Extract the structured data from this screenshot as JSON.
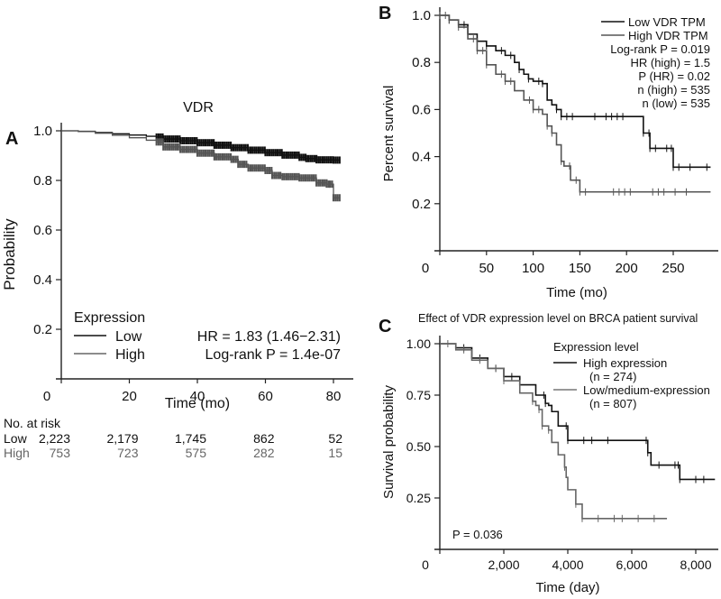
{
  "figure": {
    "panels": [
      "A",
      "B",
      "C"
    ]
  },
  "chart_data": [
    {
      "panel": "A",
      "type": "line",
      "title": "VDR",
      "xlabel": "Time (mo)",
      "ylabel": "Probability",
      "xlim": [
        0,
        82
      ],
      "ylim": [
        0,
        1.0
      ],
      "xticks": [
        0,
        20,
        40,
        60,
        80
      ],
      "yticks": [
        0.2,
        0.4,
        0.6,
        0.8,
        1.0
      ],
      "ytick_labels": [
        "0.2",
        "0.4",
        "0.6",
        "0.8",
        "1.0"
      ],
      "legend_title": "Expression",
      "legend_position": "bottom-left",
      "series": [
        {
          "name": "Low",
          "color": "#111111",
          "x": [
            0,
            5,
            10,
            15,
            20,
            25,
            28,
            30,
            35,
            40,
            45,
            50,
            55,
            60,
            65,
            70,
            72,
            75,
            80,
            82
          ],
          "y": [
            1.0,
            0.998,
            0.993,
            0.988,
            0.983,
            0.978,
            0.975,
            0.967,
            0.96,
            0.952,
            0.942,
            0.932,
            0.922,
            0.912,
            0.902,
            0.893,
            0.888,
            0.883,
            0.882,
            0.882
          ]
        },
        {
          "name": "High",
          "color": "#555555",
          "x": [
            0,
            5,
            10,
            15,
            20,
            25,
            28,
            30,
            35,
            40,
            45,
            50,
            52,
            55,
            60,
            62,
            65,
            70,
            75,
            78,
            79,
            80,
            82
          ],
          "y": [
            1.0,
            0.997,
            0.99,
            0.982,
            0.972,
            0.962,
            0.955,
            0.935,
            0.925,
            0.91,
            0.895,
            0.885,
            0.865,
            0.85,
            0.84,
            0.82,
            0.815,
            0.81,
            0.79,
            0.785,
            0.785,
            0.73,
            0.73
          ]
        }
      ],
      "annotations": [
        "HR = 1.83 (1.46−2.31)",
        "Log-rank P = 1.4e-07"
      ],
      "risk_table": {
        "title": "No. at risk",
        "rows": [
          {
            "label": "Low",
            "values": [
              "2,223",
              "2,179",
              "1,745",
              "862",
              "52"
            ]
          },
          {
            "label": "High",
            "values": [
              "753",
              "723",
              "575",
              "282",
              "15"
            ]
          }
        ]
      }
    },
    {
      "panel": "B",
      "type": "line",
      "title": "",
      "xlabel": "Time (mo)",
      "ylabel": "Percent survival",
      "xlim": [
        0,
        290
      ],
      "ylim": [
        0,
        1.0
      ],
      "xticks": [
        0,
        50,
        100,
        150,
        200,
        250
      ],
      "yticks": [
        0.2,
        0.4,
        0.6,
        0.8,
        1.0
      ],
      "ytick_labels": [
        "0.2",
        "0.4",
        "0.6",
        "0.8",
        "1.0"
      ],
      "legend_position": "top-right",
      "series": [
        {
          "name": "Low VDR TPM",
          "color": "#111111",
          "x": [
            0,
            10,
            20,
            30,
            40,
            50,
            60,
            70,
            80,
            85,
            90,
            95,
            100,
            110,
            115,
            120,
            125,
            130,
            200,
            215,
            218,
            225,
            248,
            250,
            290
          ],
          "y": [
            1.0,
            0.98,
            0.96,
            0.92,
            0.89,
            0.87,
            0.85,
            0.83,
            0.8,
            0.77,
            0.75,
            0.73,
            0.72,
            0.71,
            0.64,
            0.62,
            0.6,
            0.57,
            0.57,
            0.57,
            0.5,
            0.435,
            0.435,
            0.355,
            0.355
          ]
        },
        {
          "name": "High VDR TPM",
          "color": "#555555",
          "x": [
            0,
            10,
            20,
            30,
            40,
            50,
            60,
            70,
            80,
            90,
            100,
            110,
            115,
            120,
            125,
            130,
            133,
            140,
            150,
            290
          ],
          "y": [
            1.0,
            0.98,
            0.95,
            0.9,
            0.85,
            0.79,
            0.75,
            0.72,
            0.68,
            0.64,
            0.6,
            0.58,
            0.53,
            0.5,
            0.45,
            0.38,
            0.36,
            0.3,
            0.25,
            0.25
          ]
        }
      ],
      "annotations": [
        "Log-rank P = 0.019",
        "HR (high) = 1.5",
        "P (HR) = 0.02",
        "n (high) = 535",
        "n (low) = 535"
      ]
    },
    {
      "panel": "C",
      "type": "line",
      "title": "Effect of VDR expression level on BRCA patient survival",
      "xlabel": "Time (day)",
      "ylabel": "Survival probability",
      "xlim": [
        0,
        8600
      ],
      "ylim": [
        0,
        1.0
      ],
      "xticks": [
        0,
        2000,
        4000,
        6000,
        8000
      ],
      "xtick_labels": [
        "0",
        "2,000",
        "4,000",
        "6,000",
        "8,000"
      ],
      "yticks": [
        0.25,
        0.5,
        0.75,
        1.0
      ],
      "ytick_labels": [
        "0.25",
        "0.50",
        "0.75",
        "1.00"
      ],
      "legend_title": "Expression level",
      "legend_position": "top-right",
      "series": [
        {
          "name": "High expression",
          "sublabel": "(n = 274)",
          "color": "#111111",
          "x": [
            0,
            500,
            1000,
            1500,
            2000,
            2500,
            3000,
            3300,
            3400,
            3500,
            3700,
            4000,
            6450,
            6500,
            6600,
            7450,
            7500,
            8600
          ],
          "y": [
            1.0,
            0.98,
            0.93,
            0.88,
            0.84,
            0.8,
            0.75,
            0.71,
            0.7,
            0.67,
            0.6,
            0.53,
            0.53,
            0.47,
            0.41,
            0.41,
            0.34,
            0.34
          ]
        },
        {
          "name": "Low/medium-expression",
          "sublabel": "(n = 807)",
          "color": "#666666",
          "x": [
            0,
            500,
            1000,
            1500,
            2000,
            2500,
            2900,
            3000,
            3100,
            3200,
            3400,
            3500,
            3700,
            3900,
            3950,
            4000,
            4250,
            4450,
            7100
          ],
          "y": [
            1.0,
            0.97,
            0.92,
            0.88,
            0.82,
            0.76,
            0.72,
            0.7,
            0.68,
            0.6,
            0.58,
            0.52,
            0.46,
            0.4,
            0.35,
            0.29,
            0.22,
            0.15,
            0.15
          ]
        }
      ],
      "annotations": [
        "P = 0.036"
      ]
    }
  ]
}
